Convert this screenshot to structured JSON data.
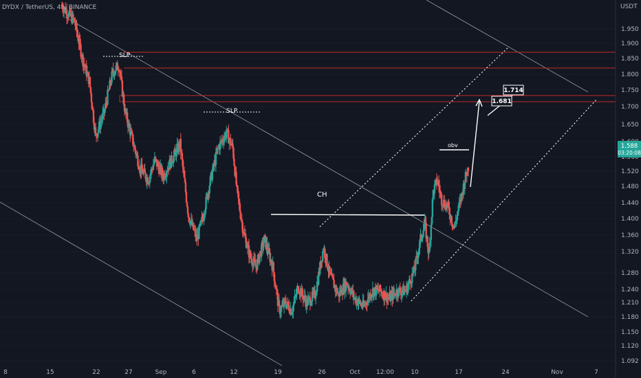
{
  "header": {
    "symbol": "DYDX / TetherUS, 4h, BINANCE",
    "currency": "USDT"
  },
  "colors": {
    "background": "#131722",
    "up": "#26a69a",
    "down": "#ef5350",
    "grid": "#1e2230",
    "resistance": "#c62828",
    "trendline": "#c8c8c8",
    "text": "#b2b5be",
    "white": "#ffffff",
    "price_tag": "#26a69a"
  },
  "chart_data": {
    "type": "candlestick",
    "title": "DYDX / TetherUS, 4h, BINANCE",
    "y_unit": "USDT",
    "ylim": [
      1.085,
      1.99
    ],
    "y_ticks": [
      "1.950",
      "1.900",
      "1.850",
      "1.800",
      "1.750",
      "1.700",
      "1.650",
      "1.600",
      "1.560",
      "1.520",
      "1.480",
      "1.440",
      "1.400",
      "1.360",
      "1.320",
      "1.280",
      "1.240",
      "1.210",
      "1.180",
      "1.150",
      "1.120",
      "1.092"
    ],
    "x_ticks": [
      "8",
      "15",
      "22",
      "27",
      "Sep",
      "6",
      "12",
      "19",
      "26",
      "Oct",
      "12:00",
      "10",
      "17",
      "24",
      "Nov",
      "7"
    ],
    "candles_path": [
      [
        0,
        1.99
      ],
      [
        6,
        1.95
      ],
      [
        10,
        1.85
      ],
      [
        13,
        1.8
      ],
      [
        16,
        1.66
      ],
      [
        20,
        1.72
      ],
      [
        24,
        1.82
      ],
      [
        27,
        1.84
      ],
      [
        30,
        1.72
      ],
      [
        33,
        1.66
      ],
      [
        37,
        1.58
      ],
      [
        41,
        1.55
      ],
      [
        44,
        1.6
      ],
      [
        48,
        1.56
      ],
      [
        52,
        1.6
      ],
      [
        56,
        1.64
      ],
      [
        60,
        1.46
      ],
      [
        64,
        1.4
      ],
      [
        67,
        1.46
      ],
      [
        70,
        1.54
      ],
      [
        74,
        1.63
      ],
      [
        78,
        1.67
      ],
      [
        81,
        1.63
      ],
      [
        83,
        1.52
      ],
      [
        86,
        1.42
      ],
      [
        89,
        1.36
      ],
      [
        92,
        1.33
      ],
      [
        96,
        1.4
      ],
      [
        100,
        1.33
      ],
      [
        103,
        1.22
      ],
      [
        106,
        1.24
      ],
      [
        109,
        1.22
      ],
      [
        112,
        1.28
      ],
      [
        116,
        1.24
      ],
      [
        120,
        1.26
      ],
      [
        124,
        1.38
      ],
      [
        127,
        1.31
      ],
      [
        131,
        1.26
      ],
      [
        135,
        1.29
      ],
      [
        139,
        1.25
      ],
      [
        143,
        1.23
      ],
      [
        147,
        1.27
      ],
      [
        151,
        1.27
      ],
      [
        155,
        1.25
      ],
      [
        159,
        1.27
      ],
      [
        163,
        1.27
      ],
      [
        167,
        1.32
      ],
      [
        170,
        1.4
      ],
      [
        172,
        1.44
      ],
      [
        174,
        1.36
      ],
      [
        176,
        1.52
      ],
      [
        178,
        1.55
      ],
      [
        180,
        1.5
      ],
      [
        183,
        1.48
      ],
      [
        186,
        1.43
      ],
      [
        189,
        1.5
      ],
      [
        191,
        1.55
      ],
      [
        193,
        1.59
      ]
    ],
    "last_price": "1.588",
    "countdown": "03:20:08",
    "resistance_levels": [
      1.871,
      1.823,
      1.737,
      1.718
    ],
    "annotations": {
      "slp": "SLP",
      "ch": "CH",
      "obv": "obv",
      "target_1": "1.714",
      "target_2": "1.681"
    }
  }
}
